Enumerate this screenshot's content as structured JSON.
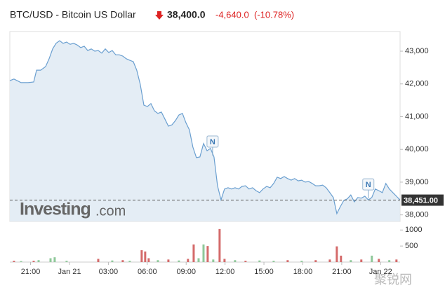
{
  "quote": {
    "name": "BTC/USD - Bitcoin US Dollar",
    "price": "38,400.0",
    "change": "-4,640.0",
    "change_pct": "(-10.78%)"
  },
  "watermark": [
    "Investing",
    ".com"
  ],
  "overlay_text": "聚锐网",
  "chart_data": [
    {
      "type": "area",
      "color": "#6a9fd0",
      "fill": "#e4edf5",
      "xlim": [
        19.4,
        49.5
      ],
      "ylim": [
        37800,
        43600
      ],
      "xticks": [
        {
          "value": 21,
          "label": "21:00"
        },
        {
          "value": 24,
          "label": "Jan 21"
        },
        {
          "value": 27,
          "label": "03:00"
        },
        {
          "value": 30,
          "label": "06:00"
        },
        {
          "value": 33,
          "label": "09:00"
        },
        {
          "value": 36,
          "label": "12:00"
        },
        {
          "value": 39,
          "label": "15:00"
        },
        {
          "value": 42,
          "label": "18:00"
        },
        {
          "value": 45,
          "label": "21:00"
        },
        {
          "value": 48,
          "label": "Jan 22"
        }
      ],
      "yticks": [
        {
          "value": 38000,
          "label": "38,000"
        },
        {
          "value": 39000,
          "label": "39,000"
        },
        {
          "value": 40000,
          "label": "40,000"
        },
        {
          "value": 41000,
          "label": "41,000"
        },
        {
          "value": 42000,
          "label": "42,000"
        },
        {
          "value": 43000,
          "label": "43,000"
        }
      ],
      "last_price": {
        "value": 38451,
        "label": "38,451.00"
      },
      "annotations": [
        {
          "x": 35.04,
          "label": "N"
        },
        {
          "x": 47.05,
          "label": "N"
        }
      ],
      "x": [
        19.4,
        19.72,
        20.27,
        20.81,
        21.24,
        21.46,
        21.78,
        22.16,
        22.43,
        22.7,
        22.97,
        23.24,
        23.51,
        23.78,
        24.05,
        24.32,
        24.59,
        24.87,
        25.14,
        25.41,
        25.68,
        25.95,
        26.22,
        26.49,
        26.76,
        27.03,
        27.3,
        27.57,
        27.84,
        28.11,
        28.38,
        28.65,
        28.92,
        29.19,
        29.46,
        29.74,
        30.01,
        30.28,
        30.55,
        30.82,
        31.09,
        31.36,
        31.63,
        31.9,
        32.17,
        32.44,
        32.71,
        32.98,
        33.25,
        33.52,
        33.79,
        34.06,
        34.34,
        34.61,
        34.88,
        35.15,
        35.42,
        35.69,
        35.96,
        36.23,
        36.5,
        36.77,
        37.04,
        37.31,
        37.58,
        37.85,
        38.12,
        38.39,
        38.66,
        38.93,
        39.21,
        39.48,
        39.75,
        40.02,
        40.29,
        40.56,
        40.83,
        41.1,
        41.37,
        41.64,
        41.91,
        42.18,
        42.45,
        42.72,
        42.99,
        43.26,
        43.53,
        43.8,
        44.08,
        44.35,
        44.62,
        44.89,
        45.16,
        45.43,
        45.7,
        45.97,
        46.24,
        46.51,
        46.78,
        47.05,
        47.32,
        47.59,
        47.86,
        48.13,
        48.4,
        48.67,
        48.95,
        49.22,
        49.49
      ],
      "values": [
        42100,
        42150,
        42040,
        42040,
        42060,
        42420,
        42420,
        42530,
        42770,
        43070,
        43240,
        43320,
        43240,
        43280,
        43210,
        43240,
        43190,
        43110,
        43150,
        43020,
        43070,
        43000,
        43020,
        42940,
        43070,
        42960,
        43020,
        42890,
        42890,
        42850,
        42770,
        42720,
        42680,
        42420,
        41990,
        41350,
        41310,
        41400,
        41180,
        41100,
        41140,
        40930,
        40710,
        40750,
        40880,
        41050,
        41100,
        40820,
        40600,
        40070,
        39750,
        39770,
        40180,
        39960,
        40030,
        39770,
        38890,
        38460,
        38790,
        38830,
        38790,
        38830,
        38790,
        38870,
        38890,
        38790,
        38830,
        38740,
        38680,
        38790,
        38870,
        38830,
        38960,
        39150,
        39110,
        39170,
        39110,
        39060,
        39110,
        39040,
        39060,
        39000,
        39020,
        38960,
        38890,
        38890,
        38910,
        38830,
        38680,
        38530,
        38040,
        38250,
        38440,
        38490,
        38610,
        38400,
        38530,
        38510,
        38570,
        38460,
        38530,
        38790,
        38740,
        38680,
        38960,
        38790,
        38680,
        38570,
        38460
      ]
    },
    {
      "type": "bar",
      "xlim": [
        19.4,
        49.5
      ],
      "ylim": [
        0,
        1180
      ],
      "yticks": [
        500,
        1000
      ],
      "x": [
        19.72,
        20.27,
        21.24,
        21.62,
        22.54,
        22.86,
        23.78,
        26.22,
        27.3,
        28.11,
        28.65,
        29.57,
        29.84,
        30.11,
        30.82,
        31.63,
        32.44,
        33.14,
        33.58,
        33.96,
        34.34,
        34.66,
        35.09,
        35.58,
        35.96,
        36.77,
        37.58,
        38.66,
        39.75,
        40.83,
        41.91,
        42.99,
        44.08,
        44.62,
        44.94,
        45.7,
        46.51,
        47.32,
        47.86,
        48.67,
        49.22
      ],
      "values": [
        40,
        30,
        40,
        60,
        120,
        150,
        40,
        100,
        50,
        60,
        40,
        370,
        330,
        120,
        60,
        80,
        50,
        100,
        550,
        120,
        550,
        500,
        80,
        1030,
        100,
        60,
        40,
        50,
        40,
        60,
        40,
        60,
        80,
        490,
        200,
        60,
        80,
        200,
        100,
        60,
        80
      ],
      "colors": [
        "#d46a6a",
        "#8fc89a",
        "#d46a6a",
        "#8fc89a",
        "#8fc89a",
        "#8fc89a",
        "#8fc89a",
        "#d46a6a",
        "#8fc89a",
        "#d46a6a",
        "#8fc89a",
        "#d46a6a",
        "#d46a6a",
        "#d46a6a",
        "#8fc89a",
        "#d46a6a",
        "#8fc89a",
        "#d46a6a",
        "#d46a6a",
        "#8fc89a",
        "#8fc89a",
        "#d46a6a",
        "#8fc89a",
        "#d46a6a",
        "#d46a6a",
        "#8fc89a",
        "#d46a6a",
        "#8fc89a",
        "#8fc89a",
        "#d46a6a",
        "#8fc89a",
        "#d46a6a",
        "#d46a6a",
        "#d46a6a",
        "#d46a6a",
        "#8fc89a",
        "#d46a6a",
        "#8fc89a",
        "#d46a6a",
        "#8fc89a",
        "#d46a6a"
      ]
    }
  ]
}
